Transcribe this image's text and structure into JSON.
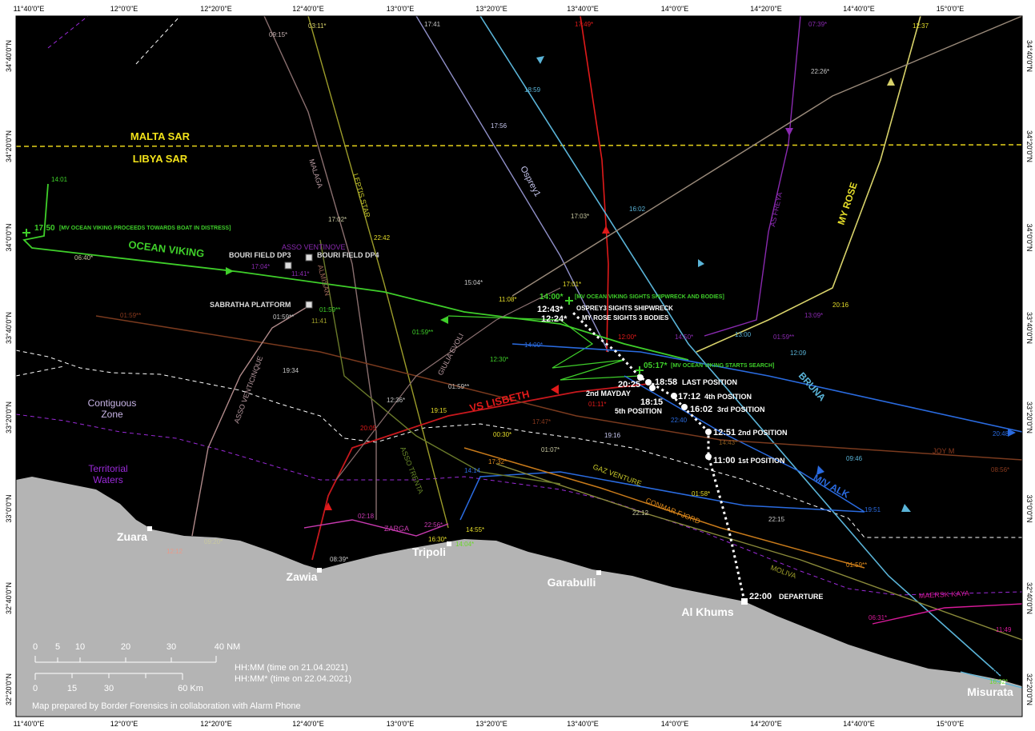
{
  "top_axis": [
    "11°40'0\"E",
    "12°0'0\"E",
    "12°20'0\"E",
    "12°40'0\"E",
    "13°0'0\"E",
    "13°20'0\"E",
    "13°40'0\"E",
    "14°0'0\"E",
    "14°20'0\"E",
    "14°40'0\"E",
    "15°0'0\"E"
  ],
  "bottom_axis": [
    "11°40'0\"E",
    "12°0'0\"E",
    "12°20'0\"E",
    "12°40'0\"E",
    "13°0'0\"E",
    "13°20'0\"E",
    "13°40'0\"E",
    "14°0'0\"E",
    "14°20'0\"E",
    "14°40'0\"E",
    "15°0'0\"E"
  ],
  "left_axis": [
    "34°40'0\"N",
    "34°20'0\"N",
    "34°0'0\"N",
    "33°40'0\"N",
    "33°20'0\"N",
    "33°0'0\"N",
    "32°40'0\"N",
    "32°20'0\"N"
  ],
  "right_axis": [
    "34°40'0\"N",
    "34°20'0\"N",
    "34°0'0\"N",
    "33°40'0\"N",
    "33°20'0\"N",
    "33°0'0\"N",
    "32°40'0\"N",
    "32°20'0\"N"
  ],
  "sar": {
    "malta": "MALTA SAR",
    "libya": "LIBYA SAR"
  },
  "zones": {
    "contiguous_1": "Contiguous",
    "contiguous_2": "Zone",
    "territorial_1": "Territorial",
    "territorial_2": "Waters"
  },
  "cities": {
    "zuara": "Zuara",
    "zawia": "Zawia",
    "tripoli": "Tripoli",
    "garabulli": "Garabulli",
    "al_khums": "Al Khums",
    "misurata": "Misurata"
  },
  "fields": {
    "dp3": "BOURI FIELD DP3",
    "dp4": "BOURI FIELD DP4",
    "sabratha": "SABRATHA PLATFORM"
  },
  "vessels": {
    "ocean_viking": "OCEAN VIKING",
    "vs_lisbeth": "VS LISBETH",
    "bruna": "BRUNA",
    "mv_alk": "M/V ALK",
    "my_rose": "MY ROSE",
    "as_freya": "AS FREYA",
    "osprey1": "Osprey1",
    "malaga": "MALAGA",
    "leptis_star": "LEPTIS STAR",
    "asso_ventinove": "ASSO VENTINOVE",
    "almisan": "ALMISAN",
    "asso_venticinque": "ASSO VENTICINQUE",
    "asso_trenta": "ASSO TRENTA",
    "giulia_evoli": "GIULIA EVOLI",
    "gaz_venture": "GAZ VENTURE",
    "conmar_fjord": "CONMAR FJORD",
    "moliva": "MOLIVA",
    "zarga": "ZARGA",
    "joy_m": "JOY M",
    "maersk_kaya": "MAERSK KAYA"
  },
  "boat": {
    "departure_time": "22:00",
    "departure_label": "DEPARTURE",
    "pos1_time": "11:00",
    "pos1_label": "1st POSITION",
    "pos2_time": "12:51",
    "pos2_label": "2nd POSITION",
    "pos3_time": "16:02",
    "pos3_label": "3rd POSITION",
    "pos4_time": "17:12",
    "pos4_label": "4th POSITION",
    "pos5_time": "18:15",
    "pos5_label": "5th POSITION",
    "last_time": "18:58",
    "last_label": "LAST POSITION",
    "mayday_time": "20:25",
    "mayday_label": "2nd MAYDAY"
  },
  "events": {
    "ov_proceeds_time": "17:50",
    "ov_proceeds_text": "[MV OCEAN VIKING PROCEEDS TOWARDS BOAT IN DISTRESS]",
    "ov_search_time": "05:17*",
    "ov_search_text": "[MV OCEAN VIKING STARTS SEARCH]",
    "ov_sights_time": "14:00*",
    "ov_sights_text": "[MV OCEAN VIKING SIGHTS SHIPWRECK AND BODIES]",
    "osprey_time": "12:43*",
    "osprey_text": "OSPREY3 SIGHTS SHIPWRECK",
    "myrose_time": "12:24*",
    "myrose_text": "MY ROSE SIGHTS 3 BODIES"
  },
  "times": {
    "ov_1401": "14:01",
    "ov_0640": "06:40*",
    "ov_0159": "01:59**",
    "ov_1230": "12:30*",
    "t0915": "09:15*",
    "t0311": "03:11*",
    "t1741": "17:41",
    "t1749": "17:49*",
    "t0739": "07:39*",
    "t1237": "12:37",
    "t2226": "22:26*",
    "t1859": "18:59",
    "t1756": "17:56",
    "t1702": "17:02*",
    "t2242": "22:42",
    "t1703": "17:03*",
    "t1602": "16:02",
    "t1704": "17:04*",
    "t1141s": "11:41*",
    "t1159b": "01:59**",
    "t1159c": "01:59**",
    "t1141": "11:41",
    "t1504": "15:04*",
    "t1108": "11:08*",
    "t1701": "17:01*",
    "t2016": "20:16",
    "t1300": "13:00",
    "t1200": "12:00*",
    "t1450": "14:50*",
    "t1309": "13:09*",
    "t0159e": "01:59**",
    "t1209": "12:09",
    "t1400b": "14:00*",
    "t0159f": "01:59**",
    "t1934": "19:34",
    "t1236": "12:36*",
    "t0159g": "01:59**",
    "t1915": "19:15",
    "t0111": "01:11*",
    "t1747": "17:47*",
    "t2240": "22:40",
    "t1916": "19:16",
    "t1443": "14:43*",
    "t2048": "20:48*",
    "t2005": "20:05",
    "t0030": "00:30*",
    "t0107": "01:07*",
    "t1732": "17:32*",
    "t1414": "14:14",
    "t0946": "09:46",
    "t0856": "08:56*",
    "t0158": "01:58*",
    "t1951": "19:51",
    "t2212": "22:12",
    "t2215": "22:15",
    "t0218": "02:18",
    "t2256": "22:56*",
    "t1630": "16:30*",
    "t1455": "14:55*",
    "t1404": "14:04*",
    "t0920": "09:20*",
    "t1212": "12:12",
    "t0839": "08:39*",
    "t0159h": "01:59**",
    "t0631": "06:31*",
    "t1149": "11:49",
    "t1815": "18:15",
    "t1632": "16:32*"
  },
  "scale": {
    "nm": [
      "0",
      "5",
      "10",
      "20",
      "30",
      "40 NM"
    ],
    "km": [
      "0",
      "15",
      "30",
      "60 Km"
    ]
  },
  "legend": {
    "line1": "HH:MM (time on 21.04.2021)",
    "line2": "HH:MM* (time on 22.04.2021)"
  },
  "credit": "Map prepared by Border Forensics in collaboration with Alarm Phone",
  "colors": {
    "sea": "#000000",
    "land": "#b4b4b4",
    "ocean_viking": "#3fcf2a",
    "lisbeth": "#e01a1a",
    "bruna": "#5ab4d8",
    "alk": "#2a6be0",
    "my_rose": "#d8d26a",
    "freya": "#8a2ab0"
  }
}
